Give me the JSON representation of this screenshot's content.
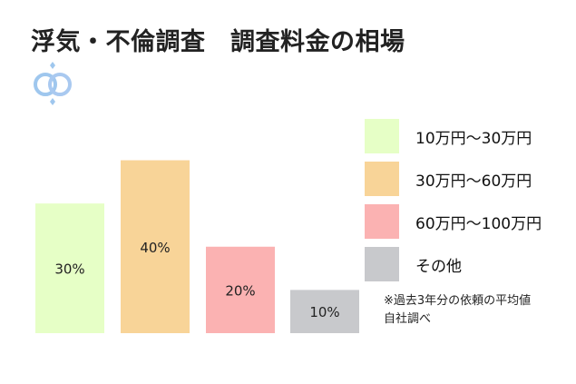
{
  "title": "浮気・不倫調査　調査料金の相場",
  "colors": {
    "c1": "#E6FFC6",
    "c2": "#F8D498",
    "c3": "#FBB2B2",
    "c4": "#C8C9CC",
    "logo": "#9FC7EE"
  },
  "chart_data": {
    "type": "bar",
    "categories": [
      "10万円〜30万円",
      "30万円〜60万円",
      "60万円〜100万円",
      "その他"
    ],
    "values": [
      30,
      40,
      20,
      10
    ],
    "data_labels": [
      "30%",
      "40%",
      "20%",
      "10%"
    ],
    "ylim": [
      0,
      42
    ],
    "grid": false,
    "legend_position": "right"
  },
  "legend": [
    {
      "label": "10万円〜30万円",
      "color": "#E6FFC6"
    },
    {
      "label": "30万円〜60万円",
      "color": "#F8D498"
    },
    {
      "label": "60万円〜100万円",
      "color": "#FBB2B2"
    },
    {
      "label": "その他",
      "color": "#C8C9CC"
    }
  ],
  "note": {
    "line1": "※過去3年分の依頼の平均値",
    "line2": "自社調べ"
  },
  "logo_icon": "double-ring-icon"
}
